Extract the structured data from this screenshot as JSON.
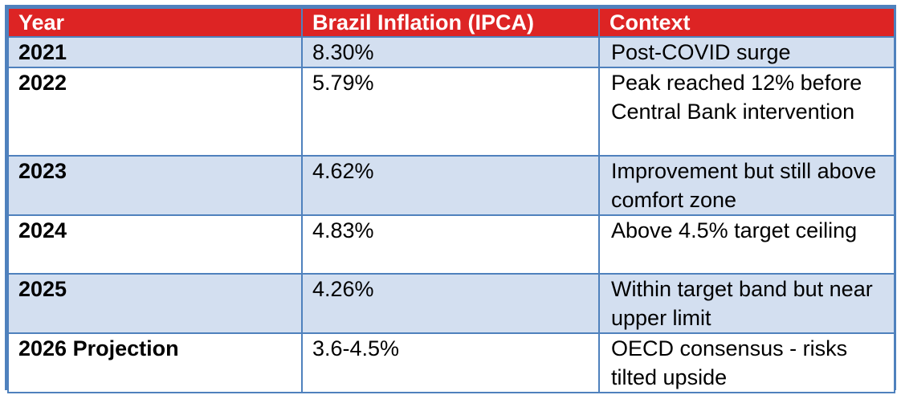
{
  "table": {
    "headers": [
      "Year",
      "Brazil Inflation (IPCA)",
      "Context"
    ],
    "rows": [
      {
        "year": "2021",
        "inflation": "8.30%",
        "context": "Post-COVID surge"
      },
      {
        "year": "2022",
        "inflation": "5.79%",
        "context": "Peak reached 12% before Central Bank intervention"
      },
      {
        "year": "2023",
        "inflation": "4.62%",
        "context": "Improvement but still above comfort zone"
      },
      {
        "year": "2024",
        "inflation": "4.83%",
        "context": "Above 4.5% target ceiling"
      },
      {
        "year": "2025",
        "inflation": "4.26%",
        "context": "Within target band but near upper limit"
      },
      {
        "year": "2026 Projection",
        "inflation": "3.6-4.5%",
        "context": "OECD consensus - risks tilted upside"
      }
    ]
  },
  "colors": {
    "header_background": "#dd2424",
    "header_text": "#ffffff",
    "border": "#4f81bd",
    "row_shaded": "#d3dff0",
    "row_plain": "#ffffff"
  }
}
